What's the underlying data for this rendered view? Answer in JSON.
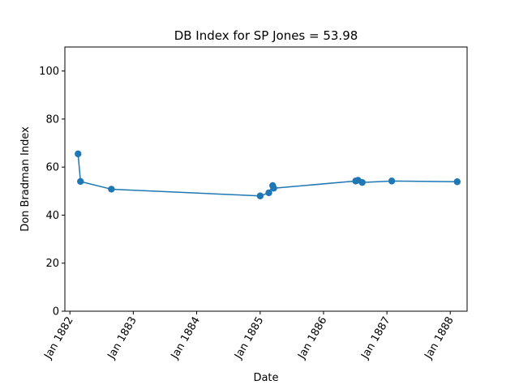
{
  "chart_data": {
    "type": "line",
    "title": "DB Index for SP Jones = 53.98",
    "xlabel": "Date",
    "ylabel": "Don Bradman Index",
    "ylim": [
      0,
      110
    ],
    "xlim": [
      "1881-12-03",
      "1888-04-07"
    ],
    "yticks": [
      0,
      20,
      40,
      60,
      80,
      100
    ],
    "xticks": [
      {
        "date": "1882-01-01",
        "label": "Jan 1882"
      },
      {
        "date": "1883-01-01",
        "label": "Jan 1883"
      },
      {
        "date": "1884-01-01",
        "label": "Jan 1884"
      },
      {
        "date": "1885-01-01",
        "label": "Jan 1885"
      },
      {
        "date": "1886-01-01",
        "label": "Jan 1886"
      },
      {
        "date": "1887-01-01",
        "label": "Jan 1887"
      },
      {
        "date": "1888-01-01",
        "label": "Jan 1888"
      }
    ],
    "grid": false,
    "series": [
      {
        "color": "#1f77b4",
        "points": [
          {
            "x": "1882-02-17",
            "y": 65.5
          },
          {
            "x": "1882-03-03",
            "y": 54.0
          },
          {
            "x": "1882-08-28",
            "y": 50.8
          },
          {
            "x": "1885-01-01",
            "y": 48.0
          },
          {
            "x": "1885-02-20",
            "y": 49.3
          },
          {
            "x": "1885-03-14",
            "y": 52.3
          },
          {
            "x": "1885-03-20",
            "y": 51.2
          },
          {
            "x": "1886-07-05",
            "y": 54.2
          },
          {
            "x": "1886-07-19",
            "y": 54.5
          },
          {
            "x": "1886-08-12",
            "y": 53.6
          },
          {
            "x": "1887-01-29",
            "y": 54.2
          },
          {
            "x": "1888-02-10",
            "y": 53.9
          }
        ]
      }
    ]
  }
}
